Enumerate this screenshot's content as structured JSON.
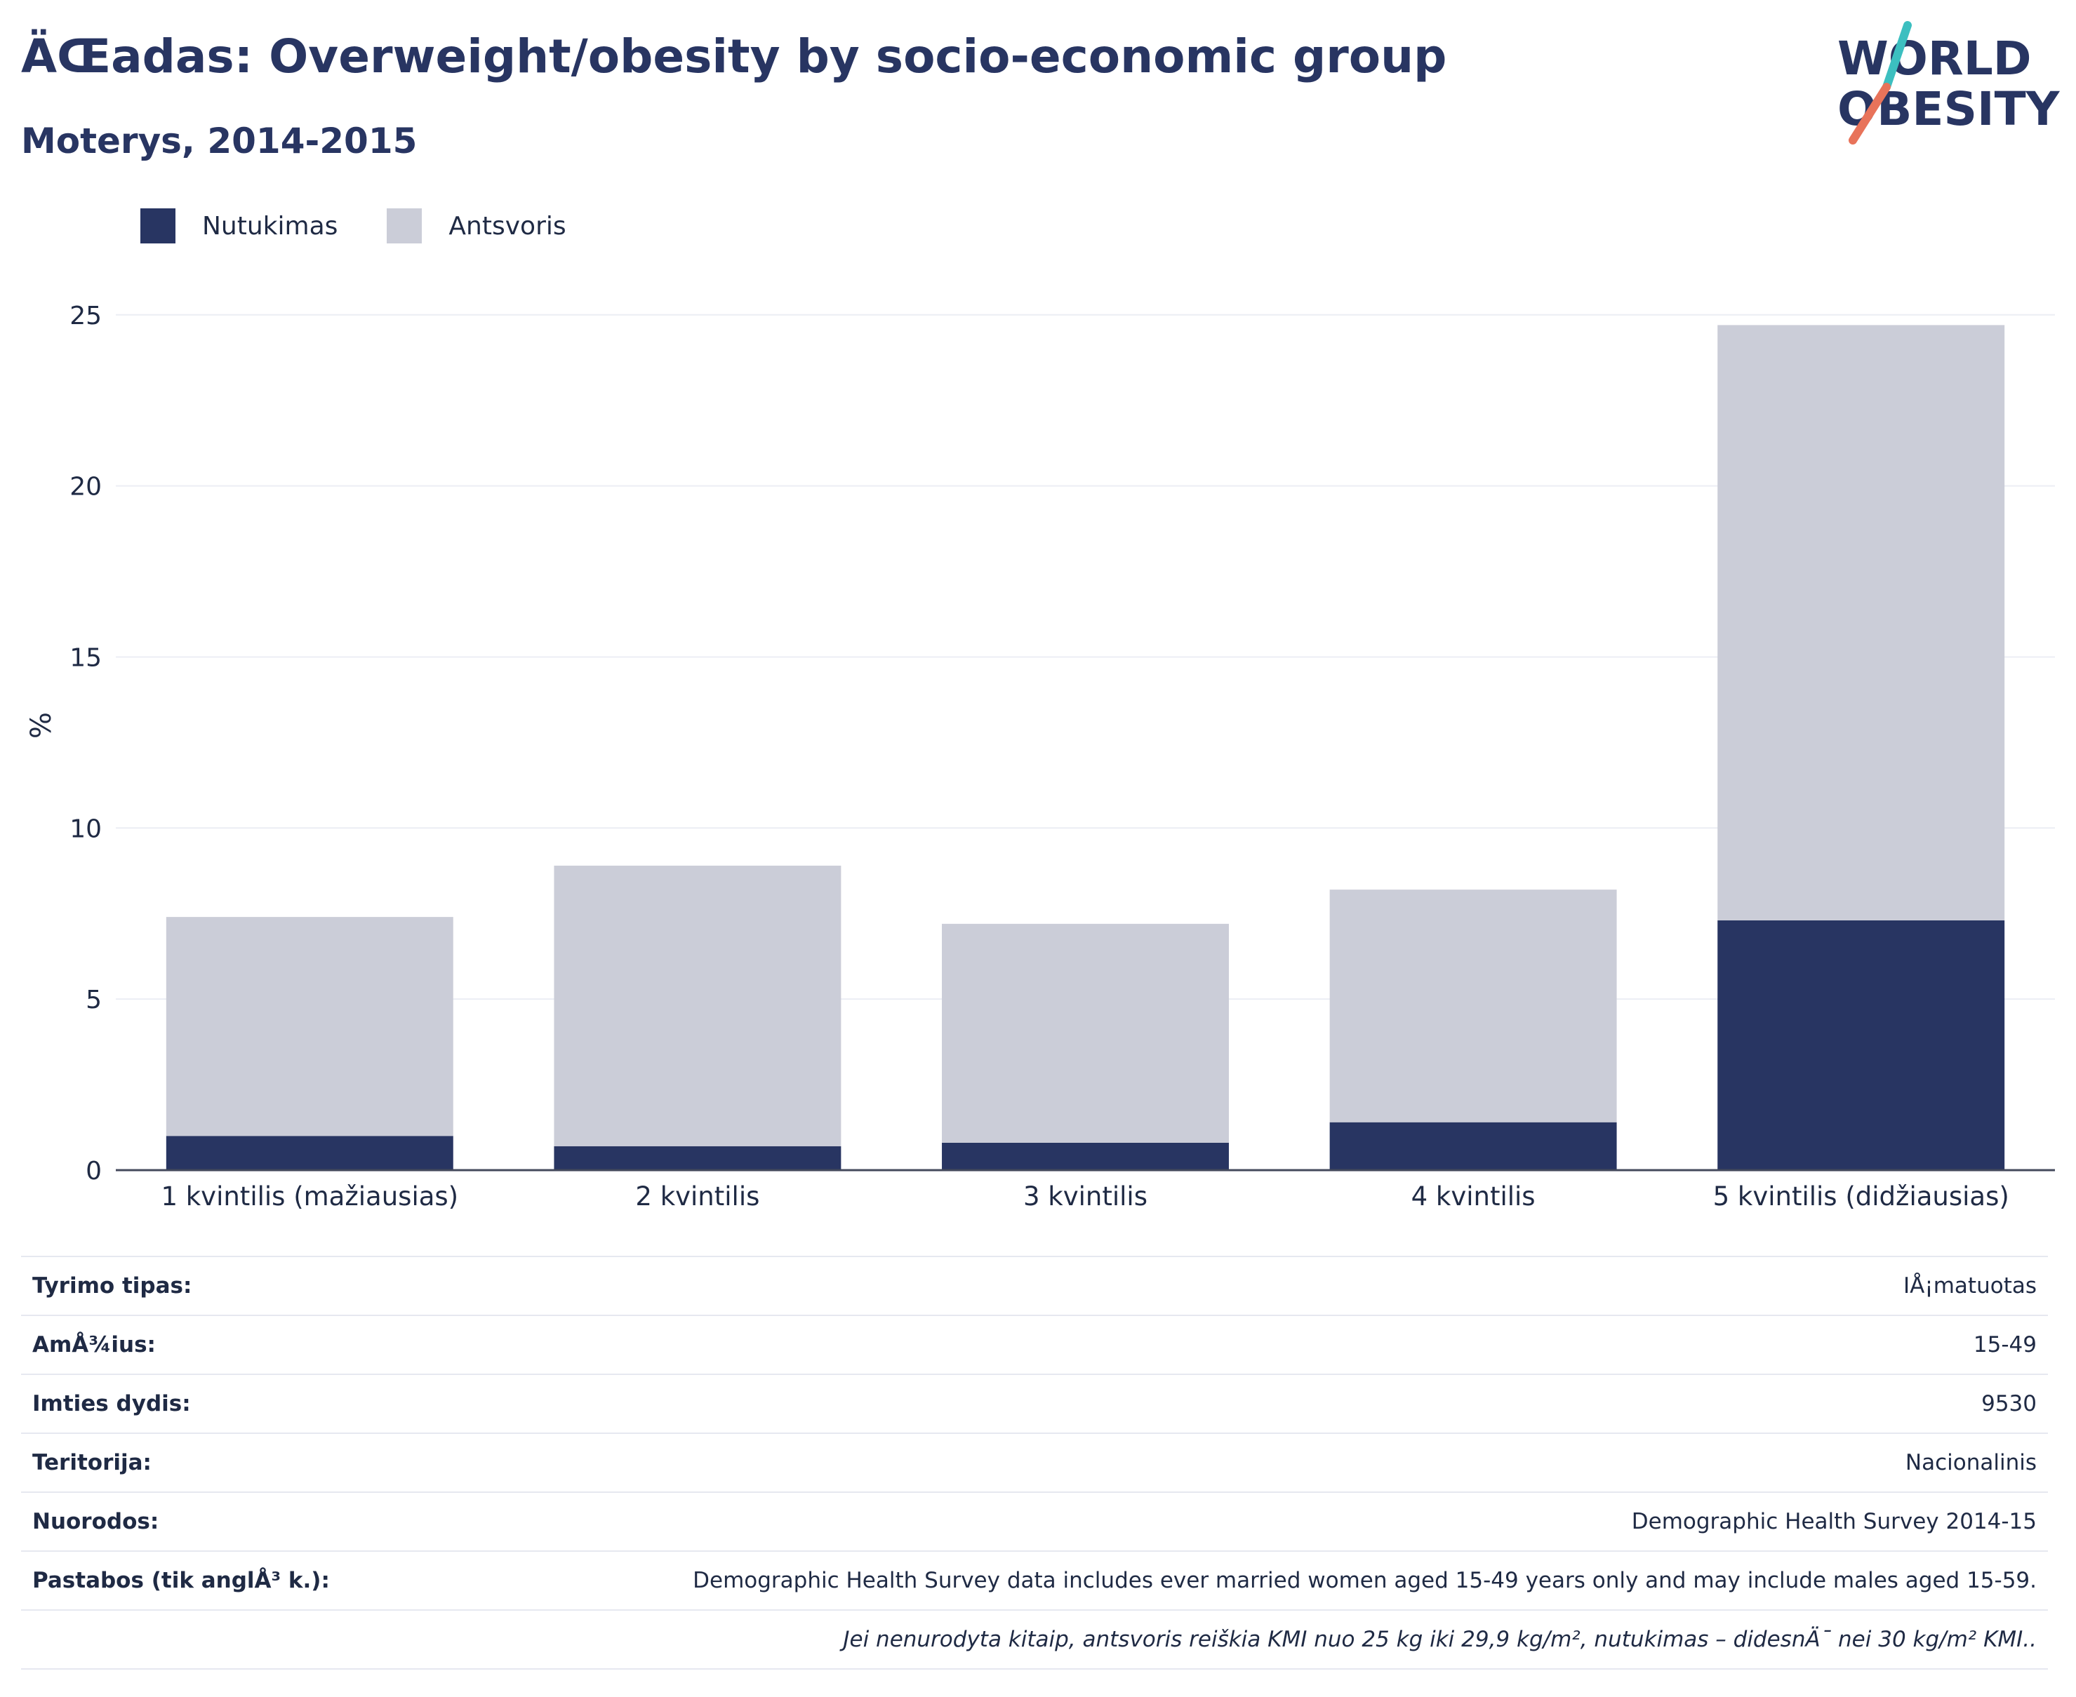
{
  "header": {
    "title": "ÄŒadas: Overweight/obesity by socio-economic group",
    "subtitle": "Moterys, 2014-2015"
  },
  "logo": {
    "line1": "WORLD",
    "line2": "OBESITY"
  },
  "colors": {
    "obesity": "#283562",
    "overweight": "#cbcdd8",
    "text": "#1f2a44",
    "grid": "#eceef4",
    "logo_teal": "#3cbfc0",
    "logo_coral": "#e8735a"
  },
  "legend": [
    {
      "label": "Nutukimas",
      "color": "#283562"
    },
    {
      "label": "Antsvoris",
      "color": "#cbcdd8"
    }
  ],
  "chart_data": {
    "type": "bar",
    "stacked": true,
    "categories": [
      "1 kvintilis (mažiausias)",
      "2 kvintilis",
      "3 kvintilis",
      "4 kvintilis",
      "5 kvintilis (didžiausias)"
    ],
    "series": [
      {
        "name": "Nutukimas",
        "values": [
          1.0,
          0.7,
          0.8,
          1.4,
          7.3
        ]
      },
      {
        "name": "Antsvoris",
        "values": [
          6.4,
          8.2,
          6.4,
          6.8,
          17.4
        ]
      }
    ],
    "ylabel": "%",
    "ylim": [
      0,
      26
    ],
    "yticks": [
      "0",
      "5",
      "10",
      "15",
      "20",
      "25"
    ],
    "ytick_values": [
      0,
      5,
      10,
      15,
      20,
      25
    ],
    "grid": true,
    "legend_position": "top-left"
  },
  "meta": [
    {
      "label": "Tyrimo tipas:",
      "value": "IÅ¡matuotas"
    },
    {
      "label": "AmÅ¾ius:",
      "value": "15-49"
    },
    {
      "label": "Imties dydis:",
      "value": "9530"
    },
    {
      "label": "Teritorija:",
      "value": "Nacionalinis"
    },
    {
      "label": "Nuorodos:",
      "value": "Demographic Health Survey 2014-15"
    },
    {
      "label": "Pastabos (tik anglÅ³ k.):",
      "value": "Demographic Health Survey data includes ever married women aged 15-49 years only and may include males aged 15-59."
    }
  ],
  "footnote": "Jei nenurodyta kitaip, antsvoris reiškia KMI nuo 25 kg iki 29,9 kg/m², nutukimas – didesnÄ¯ nei 30 kg/m² KMI.."
}
